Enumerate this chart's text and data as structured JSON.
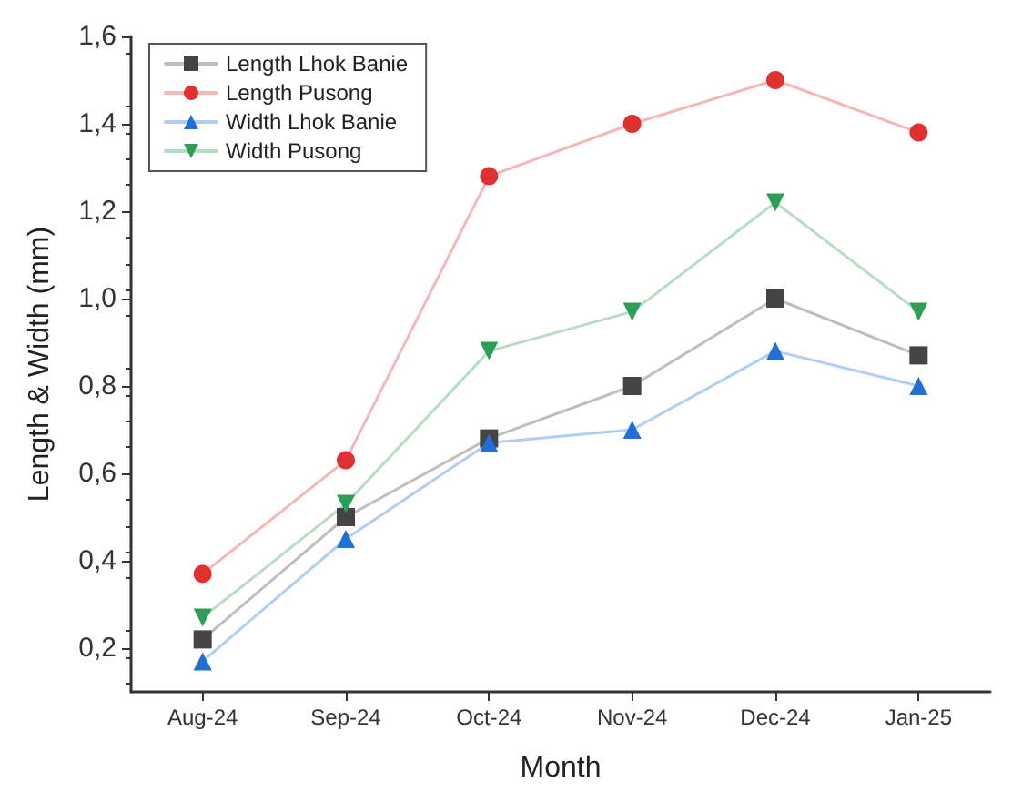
{
  "chart_data": {
    "type": "line",
    "xlabel": "Month",
    "ylabel": "Length & Width (mm)",
    "categories": [
      "Aug-24",
      "Sep-24",
      "Oct-24",
      "Nov-24",
      "Dec-24",
      "Jan-25"
    ],
    "series": [
      {
        "name": "Length Lhok Banie",
        "color": "#444444",
        "marker": "square",
        "values": [
          0.22,
          0.5,
          0.68,
          0.8,
          1.0,
          0.87
        ]
      },
      {
        "name": "Length Pusong",
        "color": "#e03030",
        "marker": "circle",
        "values": [
          0.37,
          0.63,
          1.28,
          1.4,
          1.5,
          1.38
        ]
      },
      {
        "name": "Width Lhok Banie",
        "color": "#1f6fd6",
        "marker": "triangle",
        "values": [
          0.17,
          0.45,
          0.67,
          0.7,
          0.88,
          0.8
        ]
      },
      {
        "name": "Width Pusong",
        "color": "#2e9e57",
        "marker": "triangle-down",
        "values": [
          0.27,
          0.53,
          0.88,
          0.97,
          1.22,
          0.97
        ]
      }
    ],
    "ylim": [
      0.1,
      1.6
    ],
    "yticks": [
      {
        "value": 0.2,
        "label": "0,2"
      },
      {
        "value": 0.4,
        "label": "0,4"
      },
      {
        "value": 0.6,
        "label": "0,6"
      },
      {
        "value": 0.8,
        "label": "0,8"
      },
      {
        "value": 1.0,
        "label": "1,0"
      },
      {
        "value": 1.2,
        "label": "1,2"
      },
      {
        "value": 1.4,
        "label": "1,4"
      },
      {
        "value": 1.6,
        "label": "1,6"
      }
    ],
    "grid": false,
    "legend": "top left",
    "line_style": "solid"
  }
}
